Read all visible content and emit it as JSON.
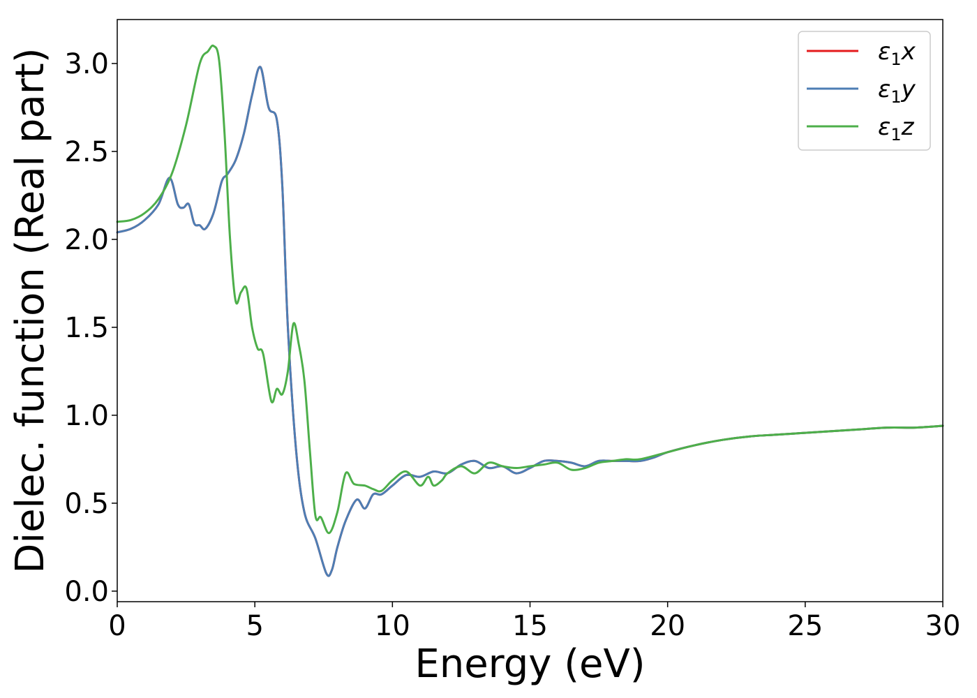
{
  "chart_data": {
    "type": "line",
    "xlabel": "Energy (eV)",
    "ylabel": "Dielec. function (Real part)",
    "xlim": [
      0,
      30
    ],
    "ylim": [
      -0.06,
      3.25
    ],
    "xticks": [
      0,
      5,
      10,
      15,
      20,
      25,
      30
    ],
    "xtick_labels": [
      "0",
      "5",
      "10",
      "15",
      "20",
      "25",
      "30"
    ],
    "yticks": [
      0.0,
      0.5,
      1.0,
      1.5,
      2.0,
      2.5,
      3.0
    ],
    "ytick_labels": [
      "0.0",
      "0.5",
      "1.0",
      "1.5",
      "2.0",
      "2.5",
      "3.0"
    ],
    "grid": false,
    "legend_position": "top-right",
    "series": [
      {
        "name": "ε1x",
        "name_base": "ε",
        "name_sub": "1",
        "name_suffix": "x",
        "color": "#e41a1c",
        "x": [
          0,
          0.5,
          1.0,
          1.5,
          1.9,
          2.2,
          2.4,
          2.6,
          2.8,
          3.0,
          3.2,
          3.5,
          3.8,
          4.0,
          4.3,
          4.6,
          4.9,
          5.2,
          5.5,
          5.8,
          6.0,
          6.2,
          6.5,
          6.8,
          7.2,
          7.6,
          7.8,
          8.0,
          8.3,
          8.7,
          9.0,
          9.3,
          9.6,
          10.0,
          10.5,
          11.0,
          11.5,
          12.0,
          12.5,
          13.0,
          13.5,
          14.0,
          14.5,
          15.0,
          15.5,
          16.0,
          16.5,
          17.0,
          17.5,
          18.0,
          18.5,
          19.0,
          19.5,
          20.0,
          21.0,
          22.0,
          23.0,
          24.0,
          25.0,
          26.0,
          27.0,
          28.0,
          29.0,
          30.0
        ],
        "y": [
          2.04,
          2.06,
          2.11,
          2.2,
          2.35,
          2.2,
          2.18,
          2.2,
          2.09,
          2.08,
          2.06,
          2.15,
          2.33,
          2.37,
          2.45,
          2.6,
          2.82,
          2.98,
          2.75,
          2.68,
          2.3,
          1.5,
          0.8,
          0.45,
          0.3,
          0.1,
          0.12,
          0.25,
          0.4,
          0.52,
          0.47,
          0.55,
          0.55,
          0.6,
          0.66,
          0.65,
          0.68,
          0.67,
          0.72,
          0.74,
          0.7,
          0.71,
          0.67,
          0.7,
          0.74,
          0.74,
          0.73,
          0.71,
          0.74,
          0.74,
          0.74,
          0.74,
          0.76,
          0.79,
          0.83,
          0.86,
          0.88,
          0.89,
          0.9,
          0.91,
          0.92,
          0.93,
          0.93,
          0.94
        ]
      },
      {
        "name": "ε1y",
        "name_base": "ε",
        "name_sub": "1",
        "name_suffix": "y",
        "color": "#4d7eb4",
        "x": [
          0,
          0.5,
          1.0,
          1.5,
          1.9,
          2.2,
          2.4,
          2.6,
          2.8,
          3.0,
          3.2,
          3.5,
          3.8,
          4.0,
          4.3,
          4.6,
          4.9,
          5.2,
          5.5,
          5.8,
          6.0,
          6.2,
          6.5,
          6.8,
          7.2,
          7.6,
          7.8,
          8.0,
          8.3,
          8.7,
          9.0,
          9.3,
          9.6,
          10.0,
          10.5,
          11.0,
          11.5,
          12.0,
          12.5,
          13.0,
          13.5,
          14.0,
          14.5,
          15.0,
          15.5,
          16.0,
          16.5,
          17.0,
          17.5,
          18.0,
          18.5,
          19.0,
          19.5,
          20.0,
          21.0,
          22.0,
          23.0,
          24.0,
          25.0,
          26.0,
          27.0,
          28.0,
          29.0,
          30.0
        ],
        "y": [
          2.04,
          2.06,
          2.11,
          2.2,
          2.35,
          2.2,
          2.18,
          2.2,
          2.09,
          2.08,
          2.06,
          2.15,
          2.33,
          2.37,
          2.45,
          2.6,
          2.82,
          2.98,
          2.75,
          2.68,
          2.3,
          1.5,
          0.8,
          0.45,
          0.3,
          0.1,
          0.12,
          0.25,
          0.4,
          0.52,
          0.47,
          0.55,
          0.55,
          0.6,
          0.66,
          0.65,
          0.68,
          0.67,
          0.72,
          0.74,
          0.7,
          0.71,
          0.67,
          0.7,
          0.74,
          0.74,
          0.73,
          0.71,
          0.74,
          0.74,
          0.74,
          0.74,
          0.76,
          0.79,
          0.83,
          0.86,
          0.88,
          0.89,
          0.9,
          0.91,
          0.92,
          0.93,
          0.93,
          0.94
        ]
      },
      {
        "name": "ε1z",
        "name_base": "ε",
        "name_sub": "1",
        "name_suffix": "z",
        "color": "#4daf4a",
        "x": [
          0,
          0.5,
          1.0,
          1.5,
          2.0,
          2.5,
          3.0,
          3.3,
          3.5,
          3.7,
          3.9,
          4.1,
          4.3,
          4.5,
          4.7,
          4.9,
          5.1,
          5.3,
          5.6,
          5.8,
          6.0,
          6.2,
          6.4,
          6.6,
          6.8,
          7.0,
          7.2,
          7.4,
          7.7,
          8.0,
          8.3,
          8.6,
          9.0,
          9.3,
          9.6,
          10.0,
          10.5,
          11.0,
          11.3,
          11.5,
          11.8,
          12.0,
          12.5,
          13.0,
          13.5,
          14.0,
          14.5,
          15.0,
          15.5,
          16.0,
          16.5,
          17.0,
          17.5,
          18.0,
          18.5,
          19.0,
          20.0,
          21.0,
          22.0,
          23.0,
          24.0,
          25.0,
          26.0,
          27.0,
          28.0,
          29.0,
          30.0
        ],
        "y": [
          2.1,
          2.11,
          2.15,
          2.23,
          2.38,
          2.65,
          3.0,
          3.07,
          3.1,
          3.02,
          2.6,
          2.0,
          1.65,
          1.7,
          1.72,
          1.5,
          1.38,
          1.35,
          1.08,
          1.15,
          1.12,
          1.25,
          1.52,
          1.4,
          1.2,
          0.8,
          0.43,
          0.42,
          0.33,
          0.45,
          0.67,
          0.61,
          0.6,
          0.58,
          0.57,
          0.63,
          0.68,
          0.6,
          0.65,
          0.6,
          0.63,
          0.67,
          0.71,
          0.67,
          0.73,
          0.71,
          0.7,
          0.71,
          0.72,
          0.73,
          0.69,
          0.7,
          0.73,
          0.74,
          0.75,
          0.75,
          0.79,
          0.83,
          0.86,
          0.88,
          0.89,
          0.9,
          0.91,
          0.92,
          0.93,
          0.93,
          0.94
        ]
      }
    ]
  }
}
